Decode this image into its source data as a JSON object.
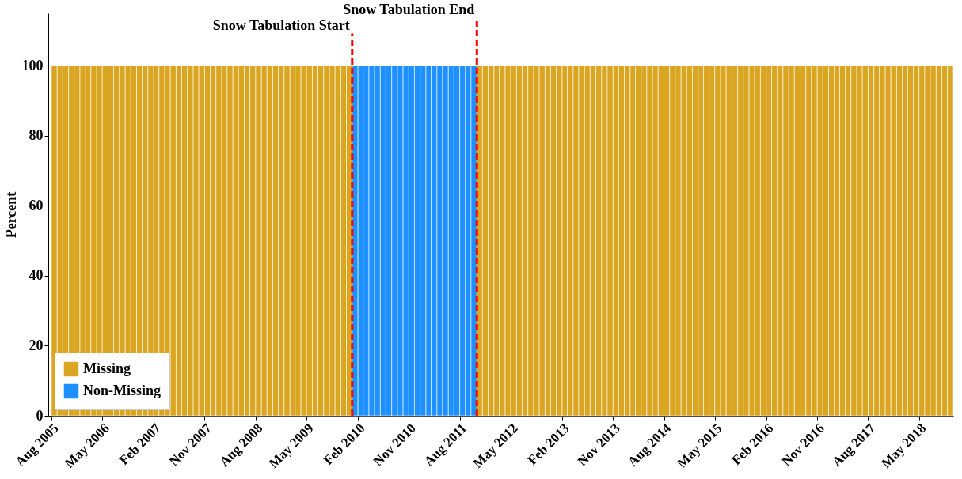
{
  "chart_data": {
    "type": "bar",
    "stacked": true,
    "ylabel": "Percent",
    "x": [
      "2005-08",
      "2005-09",
      "2005-10",
      "2005-11",
      "2005-12",
      "2006-01",
      "2006-02",
      "2006-03",
      "2006-04",
      "2006-05",
      "2006-06",
      "2006-07",
      "2006-08",
      "2006-09",
      "2006-10",
      "2006-11",
      "2006-12",
      "2007-01",
      "2007-02",
      "2007-03",
      "2007-04",
      "2007-05",
      "2007-06",
      "2007-07",
      "2007-08",
      "2007-09",
      "2007-10",
      "2007-11",
      "2007-12",
      "2008-01",
      "2008-02",
      "2008-03",
      "2008-04",
      "2008-05",
      "2008-06",
      "2008-07",
      "2008-08",
      "2008-09",
      "2008-10",
      "2008-11",
      "2008-12",
      "2009-01",
      "2009-02",
      "2009-03",
      "2009-04",
      "2009-05",
      "2009-06",
      "2009-07",
      "2009-08",
      "2009-09",
      "2009-10",
      "2009-11",
      "2009-12",
      "2010-01",
      "2010-02",
      "2010-03",
      "2010-04",
      "2010-05",
      "2010-06",
      "2010-07",
      "2010-08",
      "2010-09",
      "2010-10",
      "2010-11",
      "2010-12",
      "2011-01",
      "2011-02",
      "2011-03",
      "2011-04",
      "2011-05",
      "2011-06",
      "2011-07",
      "2011-08",
      "2011-09",
      "2011-10",
      "2011-11",
      "2011-12",
      "2012-01",
      "2012-02",
      "2012-03",
      "2012-04",
      "2012-05",
      "2012-06",
      "2012-07",
      "2012-08",
      "2012-09",
      "2012-10",
      "2012-11",
      "2012-12",
      "2013-01",
      "2013-02",
      "2013-03",
      "2013-04",
      "2013-05",
      "2013-06",
      "2013-07",
      "2013-08",
      "2013-09",
      "2013-10",
      "2013-11",
      "2013-12",
      "2014-01",
      "2014-02",
      "2014-03",
      "2014-04",
      "2014-05",
      "2014-06",
      "2014-07",
      "2014-08",
      "2014-09",
      "2014-10",
      "2014-11",
      "2014-12",
      "2015-01",
      "2015-02",
      "2015-03",
      "2015-04",
      "2015-05",
      "2015-06",
      "2015-07",
      "2015-08",
      "2015-09",
      "2015-10",
      "2015-11",
      "2015-12",
      "2016-01",
      "2016-02",
      "2016-03",
      "2016-04",
      "2016-05",
      "2016-06",
      "2016-07",
      "2016-08",
      "2016-09",
      "2016-10",
      "2016-11",
      "2016-12",
      "2017-01",
      "2017-02",
      "2017-03",
      "2017-04",
      "2017-05",
      "2017-06",
      "2017-07",
      "2017-08",
      "2017-09",
      "2017-10",
      "2017-11",
      "2017-12",
      "2018-01",
      "2018-02",
      "2018-03",
      "2018-04",
      "2018-05",
      "2018-06",
      "2018-07",
      "2018-08",
      "2018-09",
      "2018-10"
    ],
    "series": [
      {
        "name": "Missing",
        "color": "#daa520",
        "values": [
          100,
          100,
          100,
          100,
          100,
          100,
          100,
          100,
          100,
          100,
          100,
          100,
          100,
          100,
          100,
          100,
          100,
          100,
          100,
          100,
          100,
          100,
          100,
          100,
          100,
          100,
          100,
          100,
          100,
          100,
          100,
          100,
          100,
          100,
          100,
          100,
          100,
          100,
          100,
          100,
          100,
          100,
          100,
          100,
          100,
          100,
          100,
          100,
          100,
          100,
          100,
          100,
          100,
          0,
          0,
          0,
          0,
          0,
          0,
          0,
          0,
          0,
          0,
          0,
          0,
          0,
          0,
          0,
          0,
          0,
          0,
          0,
          0,
          0,
          0,
          100,
          100,
          100,
          100,
          100,
          100,
          100,
          100,
          100,
          100,
          100,
          100,
          100,
          100,
          100,
          100,
          100,
          100,
          100,
          100,
          100,
          100,
          100,
          100,
          100,
          100,
          100,
          100,
          100,
          100,
          100,
          100,
          100,
          100,
          100,
          100,
          100,
          100,
          100,
          100,
          100,
          100,
          100,
          100,
          100,
          100,
          100,
          100,
          100,
          100,
          100,
          100,
          100,
          100,
          100,
          100,
          100,
          100,
          100,
          100,
          100,
          100,
          100,
          100,
          100,
          100,
          100,
          100,
          100,
          100,
          100,
          100,
          100,
          100,
          100,
          100,
          100,
          100,
          100,
          100,
          100,
          100,
          100,
          100
        ]
      },
      {
        "name": "Non-Missing",
        "color": "#1e90ff",
        "values": [
          0,
          0,
          0,
          0,
          0,
          0,
          0,
          0,
          0,
          0,
          0,
          0,
          0,
          0,
          0,
          0,
          0,
          0,
          0,
          0,
          0,
          0,
          0,
          0,
          0,
          0,
          0,
          0,
          0,
          0,
          0,
          0,
          0,
          0,
          0,
          0,
          0,
          0,
          0,
          0,
          0,
          0,
          0,
          0,
          0,
          0,
          0,
          0,
          0,
          0,
          0,
          0,
          0,
          100,
          100,
          100,
          100,
          100,
          100,
          100,
          100,
          100,
          100,
          100,
          100,
          100,
          100,
          100,
          100,
          100,
          100,
          100,
          100,
          100,
          100,
          0,
          0,
          0,
          0,
          0,
          0,
          0,
          0,
          0,
          0,
          0,
          0,
          0,
          0,
          0,
          0,
          0,
          0,
          0,
          0,
          0,
          0,
          0,
          0,
          0,
          0,
          0,
          0,
          0,
          0,
          0,
          0,
          0,
          0,
          0,
          0,
          0,
          0,
          0,
          0,
          0,
          0,
          0,
          0,
          0,
          0,
          0,
          0,
          0,
          0,
          0,
          0,
          0,
          0,
          0,
          0,
          0,
          0,
          0,
          0,
          0,
          0,
          0,
          0,
          0,
          0,
          0,
          0,
          0,
          0,
          0,
          0,
          0,
          0,
          0,
          0,
          0,
          0,
          0,
          0,
          0,
          0,
          0,
          0
        ]
      }
    ],
    "xlim": [
      "2005-07-15",
      "2018-11-01"
    ],
    "xticks": [
      {
        "value": "2005-08",
        "label": "Aug 2005"
      },
      {
        "value": "2006-05",
        "label": "May 2006"
      },
      {
        "value": "2007-02",
        "label": "Feb 2007"
      },
      {
        "value": "2007-11",
        "label": "Nov 2007"
      },
      {
        "value": "2008-08",
        "label": "Aug 2008"
      },
      {
        "value": "2009-05",
        "label": "May 2009"
      },
      {
        "value": "2010-02",
        "label": "Feb 2010"
      },
      {
        "value": "2010-11",
        "label": "Nov 2010"
      },
      {
        "value": "2011-08",
        "label": "Aug 2011"
      },
      {
        "value": "2012-05",
        "label": "May 2012"
      },
      {
        "value": "2013-02",
        "label": "Feb 2013"
      },
      {
        "value": "2013-11",
        "label": "Nov 2013"
      },
      {
        "value": "2014-08",
        "label": "Aug 2014"
      },
      {
        "value": "2015-05",
        "label": "May 2015"
      },
      {
        "value": "2016-02",
        "label": "Feb 2016"
      },
      {
        "value": "2016-11",
        "label": "Nov 2016"
      },
      {
        "value": "2017-08",
        "label": "Aug 2017"
      },
      {
        "value": "2018-05",
        "label": "May 2018"
      }
    ],
    "ylim": [
      0,
      115
    ],
    "yticks": [
      0,
      20,
      40,
      60,
      80,
      100
    ],
    "ref_lines": [
      {
        "axis": "x",
        "value": "2010-01",
        "label": "Snow Tabulation Start",
        "color": "#ff0000",
        "line_style": "dashed"
      },
      {
        "axis": "x",
        "value": "2011-11",
        "label": "Snow Tabulation End",
        "color": "#ff0000",
        "line_style": "dashed"
      }
    ],
    "legend": "bottom left",
    "grid": false
  }
}
